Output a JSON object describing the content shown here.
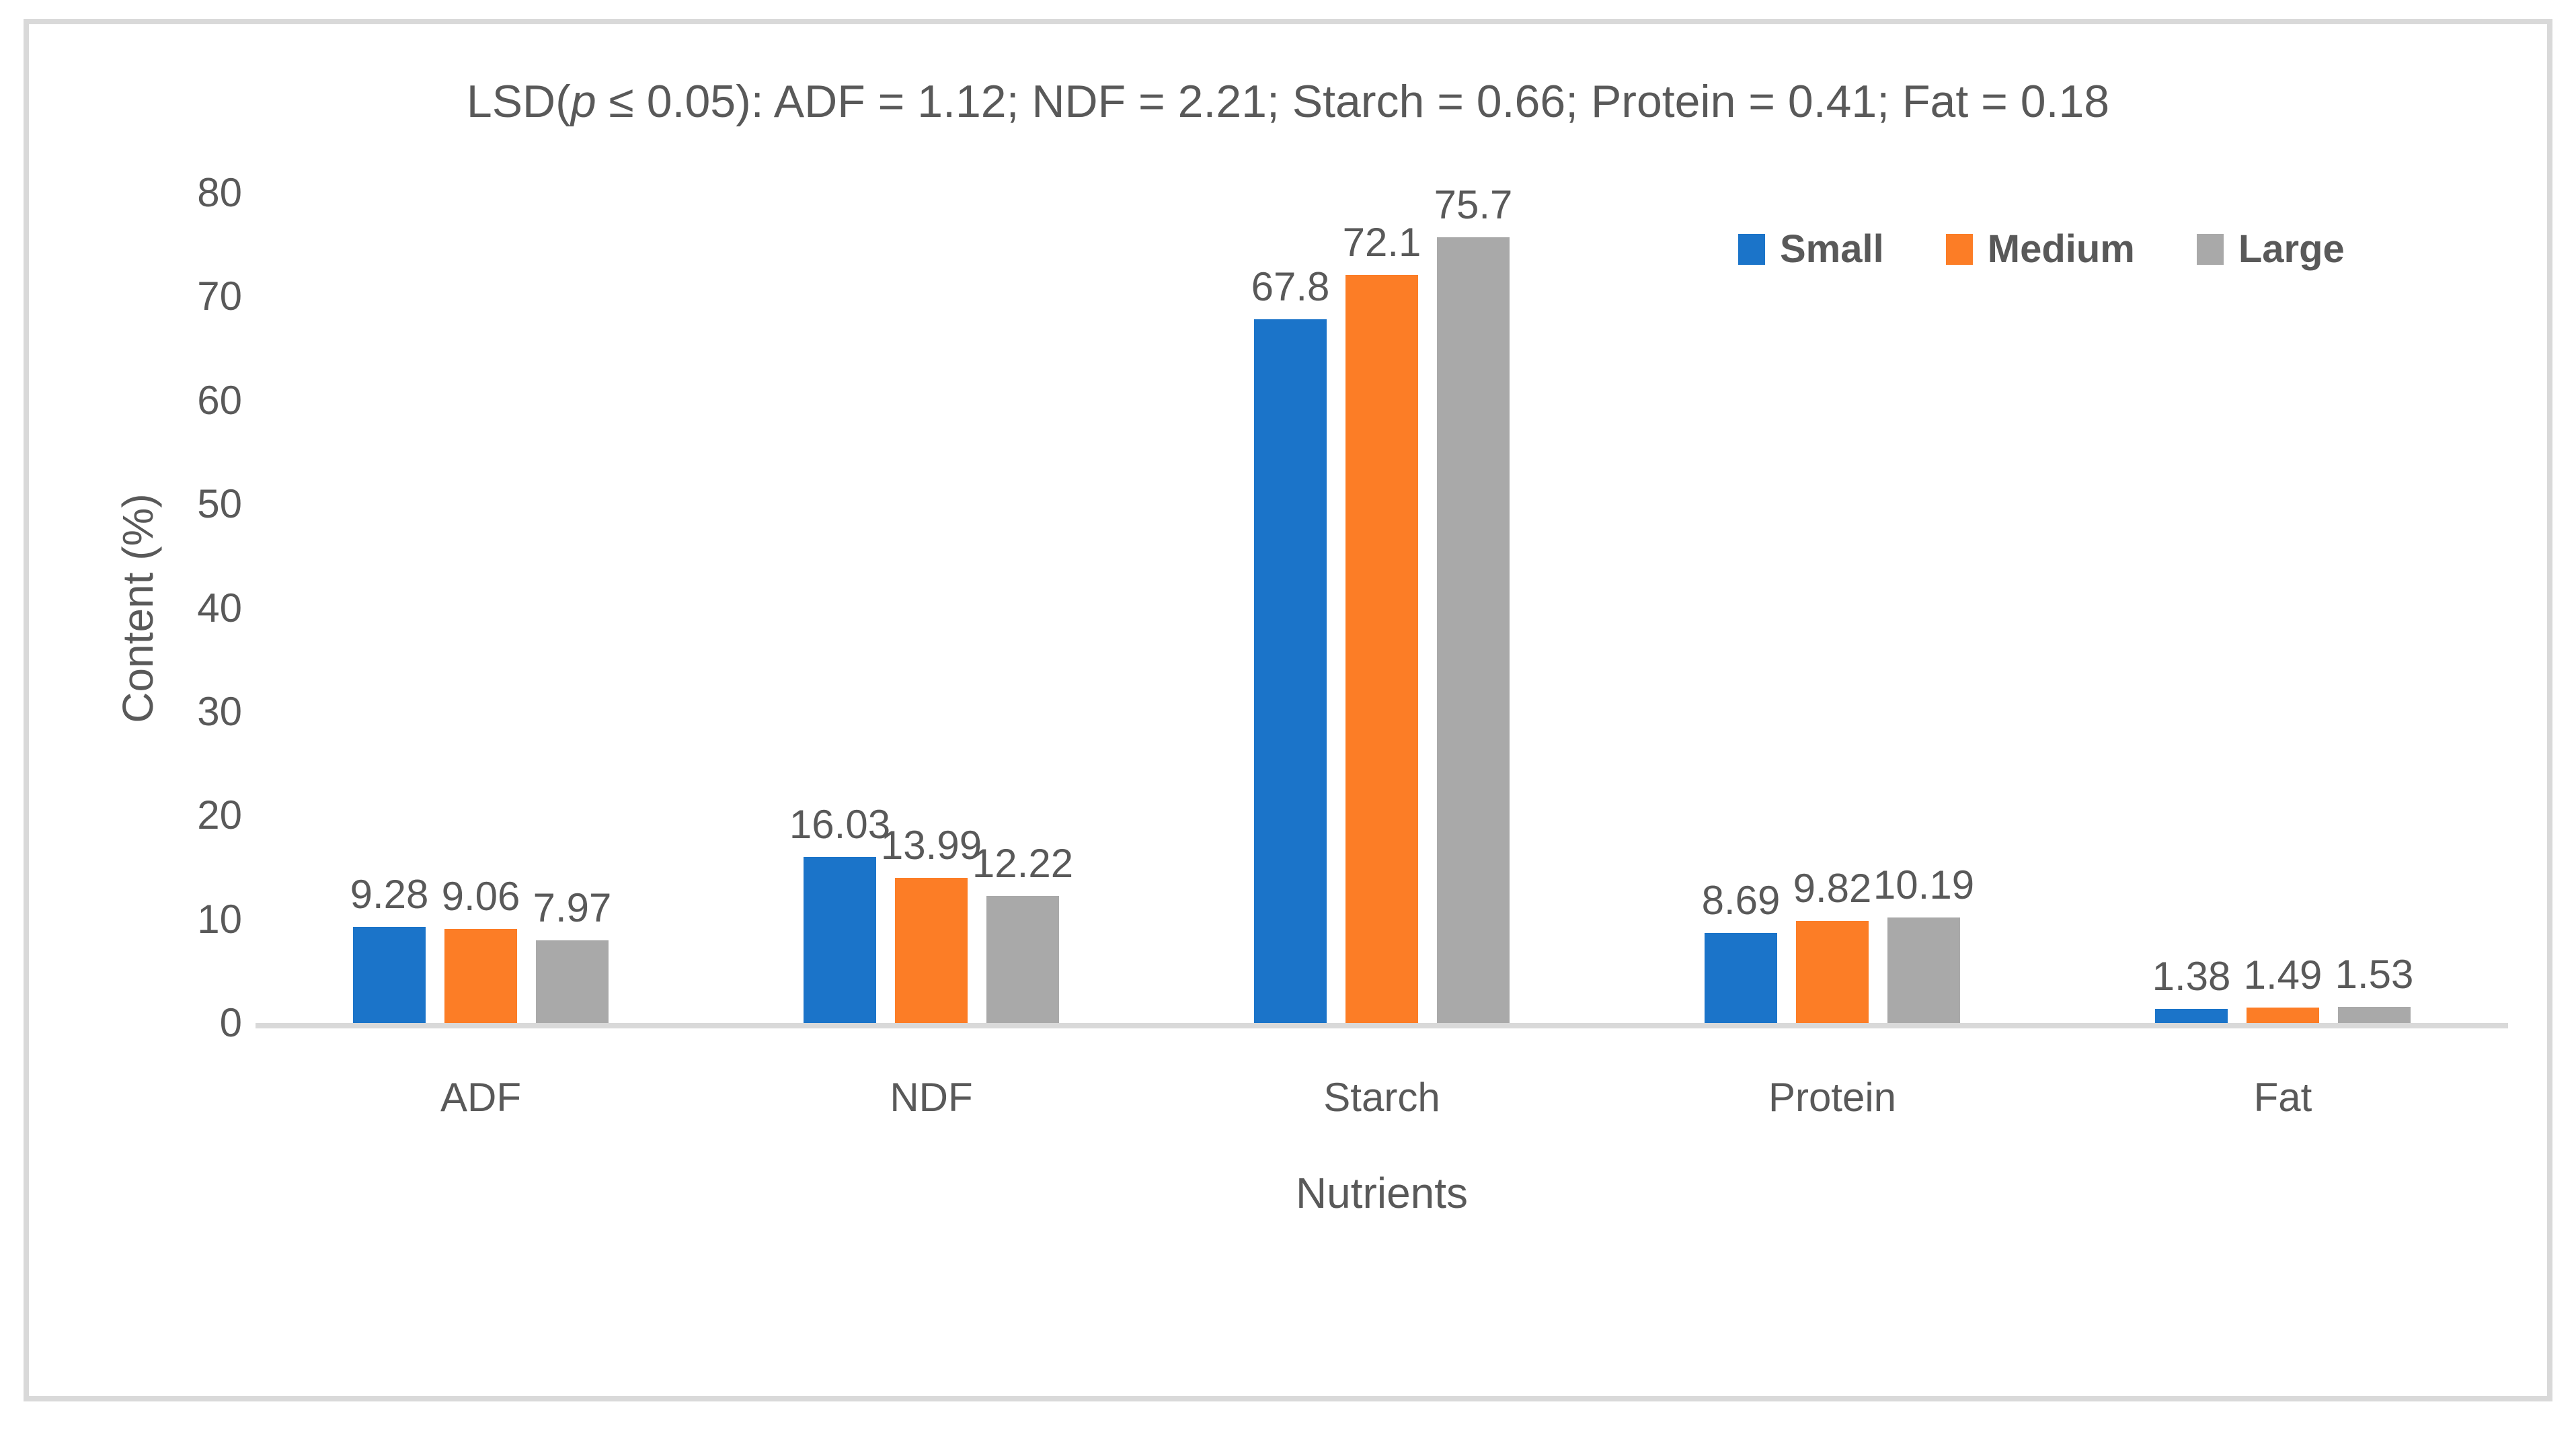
{
  "figure": {
    "title_prefix": "LSD(",
    "title_italic": "p",
    "title_suffix": " ≤ 0.05): ADF = 1.12; NDF = 2.21; Starch = 0.66; Protein = 0.41; Fat = 0.18"
  },
  "chart_data": {
    "type": "bar",
    "title": "LSD(p ≤ 0.05): ADF = 1.12; NDF = 2.21; Starch = 0.66; Protein = 0.41; Fat = 0.18",
    "categories": [
      "ADF",
      "NDF",
      "Starch",
      "Protein",
      "Fat"
    ],
    "series": [
      {
        "name": "Small",
        "color": "#1B74C9",
        "values": [
          9.28,
          16.03,
          67.8,
          8.69,
          1.38
        ],
        "labels": [
          "9.28",
          "16.03",
          "67.8",
          "8.69",
          "1.38"
        ]
      },
      {
        "name": "Medium",
        "color": "#FC7D26",
        "values": [
          9.06,
          13.99,
          72.1,
          9.82,
          1.49
        ],
        "labels": [
          "9.06",
          "13.99",
          "72.1",
          "9.82",
          "1.49"
        ]
      },
      {
        "name": "Large",
        "color": "#A9A9A9",
        "values": [
          7.97,
          12.22,
          75.7,
          10.19,
          1.53
        ],
        "labels": [
          "7.97",
          "12.22",
          "75.7",
          "10.19",
          "1.53"
        ]
      }
    ],
    "xlabel": "Nutrients",
    "ylabel": "Content (%)",
    "ylim": [
      0,
      80
    ],
    "yticks": [
      0,
      10,
      20,
      30,
      40,
      50,
      60,
      70,
      80
    ],
    "grid": false,
    "legend_position": "top-right-inside"
  },
  "colors": {
    "frame_border": "#D9D9D9",
    "axis_line": "#D9D9D9",
    "text": "#595959"
  }
}
